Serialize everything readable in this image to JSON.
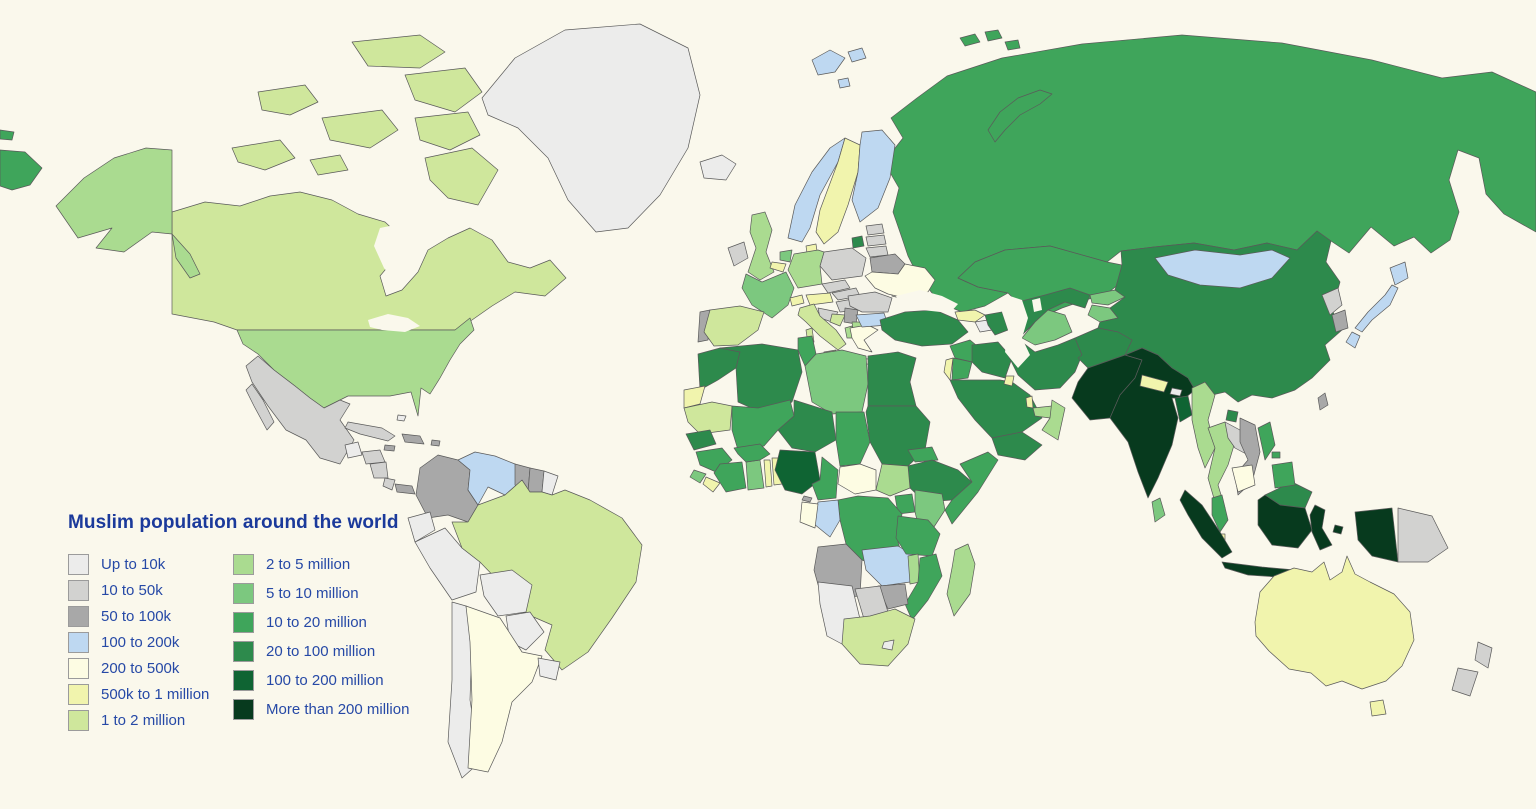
{
  "title": "Muslim population around the world",
  "legend": {
    "title_color": "#1b3a9b",
    "label_color": "#2649a6"
  },
  "map": {
    "ocean": "#faf8ec",
    "stroke": "#5a5a5a"
  },
  "categories": [
    {
      "id": "c1",
      "label": "Up to 10k",
      "color": "#ececeb"
    },
    {
      "id": "c2",
      "label": "10 to 50k",
      "color": "#d2d2d0"
    },
    {
      "id": "c3",
      "label": "50 to 100k",
      "color": "#a8a8a8"
    },
    {
      "id": "c4",
      "label": "100 to 200k",
      "color": "#bed8f1"
    },
    {
      "id": "c5",
      "label": "200 to 500k",
      "color": "#fdfce3"
    },
    {
      "id": "c6",
      "label": "500k to 1 million",
      "color": "#f1f4ad"
    },
    {
      "id": "c7",
      "label": "1 to 2 million",
      "color": "#cfe79c"
    },
    {
      "id": "c8",
      "label": "2 to 5 million",
      "color": "#aadb90"
    },
    {
      "id": "c9",
      "label": "5 to 10 million",
      "color": "#7cc87f"
    },
    {
      "id": "c10",
      "label": "10 to 20 million",
      "color": "#3fa55b"
    },
    {
      "id": "c11",
      "label": "20 to 100 million",
      "color": "#2d8a4c"
    },
    {
      "id": "c12",
      "label": "100 to 200 million",
      "color": "#0f6433"
    },
    {
      "id": "c13",
      "label": "More than 200 million",
      "color": "#073a1e"
    }
  ],
  "regions": {
    "russia": "c10",
    "russia-wrap": "c10",
    "kaliningrad": "c11",
    "novaya-zemlya": "c10",
    "franz-josef": "c10",
    "svalbard": "c4",
    "greenland": "c1",
    "iceland": "c1",
    "canada": "c7",
    "canada-arctic": "c7",
    "alaska": "c8",
    "usa": "c8",
    "mexico": "c2",
    "guatemala": "c1",
    "honduras": "c2",
    "nicaragua": "c2",
    "costa-rica": "c2",
    "panama": "c3",
    "cuba": "c2",
    "hispaniola": "c3",
    "jamaica": "c3",
    "puerto-rico": "c3",
    "bahamas": "c1",
    "colombia": "c3",
    "venezuela": "c4",
    "guyana": "c3",
    "suriname": "c3",
    "french-guiana": "c1",
    "ecuador": "c1",
    "peru": "c1",
    "brazil": "c7",
    "bolivia": "c1",
    "paraguay": "c1",
    "chile": "c1",
    "argentina": "c5",
    "uruguay": "c1",
    "ireland": "c2",
    "uk": "c8",
    "norway": "c4",
    "sweden": "c6",
    "finland": "c4",
    "denmark": "c6",
    "estonia": "c2",
    "latvia": "c2",
    "lithuania": "c2",
    "belarus": "c3",
    "poland": "c2",
    "germany": "c8",
    "netherlands": "c9",
    "belgium": "c6",
    "czechia": "c2",
    "slovakia": "c2",
    "france": "c9",
    "switzerland": "c6",
    "austria": "c6",
    "hungary": "c2",
    "slovenia-croatia": "c2",
    "bosnia": "c7",
    "serbia": "c3",
    "albania": "c8",
    "macedonia": "c8",
    "greece": "c5",
    "bulgaria": "c4",
    "romania": "c2",
    "moldova": "c5",
    "ukraine": "c5",
    "portugal": "c3",
    "spain": "c7",
    "italy": "c7",
    "kazakhstan": "c10",
    "uzbekistan": "c11",
    "turkmenistan": "c9",
    "kyrgyzstan": "c9",
    "tajikistan": "c9",
    "georgia": "c6",
    "armenia": "c1",
    "azerbaijan": "c11",
    "turkey": "c11",
    "syria": "c10",
    "israel": "c6",
    "jordan": "c10",
    "iraq": "c11",
    "iran": "c11",
    "afghanistan": "c11",
    "pakistan": "c13",
    "india": "c13",
    "nepal": "c6",
    "bhutan": "c1",
    "bangladesh": "c12",
    "sri-lanka": "c9",
    "china": "c11",
    "hainan": "c11",
    "mongolia": "c4",
    "north-korea": "c2",
    "south-korea": "c3",
    "japan": "c4",
    "taiwan": "c3",
    "myanmar": "c8",
    "thailand": "c8",
    "laos": "c2",
    "vietnam": "c3",
    "cambodia": "c5",
    "malaysia": "c10",
    "malaysia-borneo": "c11",
    "singapore": "c6",
    "indonesia": "c13",
    "papua-new-guinea": "c2",
    "philippines": "c10",
    "saudi-arabia": "c11",
    "kuwait": "c6",
    "qatar": "c6",
    "uae": "c8",
    "oman": "c8",
    "yemen": "c11",
    "morocco": "c11",
    "western-sahara": "c6",
    "algeria": "c11",
    "tunisia": "c10",
    "libya": "c9",
    "egypt": "c11",
    "mauritania": "c7",
    "senegal": "c11",
    "guinea": "c10",
    "sierra-leone": "c9",
    "liberia": "c6",
    "ivory-coast": "c10",
    "ghana": "c9",
    "togo": "c6",
    "benin": "c6",
    "burkina-faso": "c10",
    "mali": "c10",
    "niger": "c11",
    "nigeria": "c12",
    "chad": "c10",
    "sudan": "c11",
    "eritrea": "c10",
    "ethiopia": "c11",
    "somalia": "c10",
    "south-sudan": "c8",
    "central-african-republic": "c5",
    "cameroon": "c10",
    "uganda": "c10",
    "kenya": "c9",
    "drc": "c10",
    "congo": "c4",
    "gabon": "c5",
    "equatorial-guinea": "c3",
    "angola": "c3",
    "zambia": "c4",
    "tanzania": "c10",
    "malawi": "c8",
    "mozambique": "c10",
    "zimbabwe": "c3",
    "botswana": "c2",
    "namibia": "c1",
    "south-africa": "c7",
    "lesotho": "c1",
    "madagascar": "c8",
    "australia": "c6",
    "tasmania": "c6",
    "new-zealand": "c2"
  }
}
